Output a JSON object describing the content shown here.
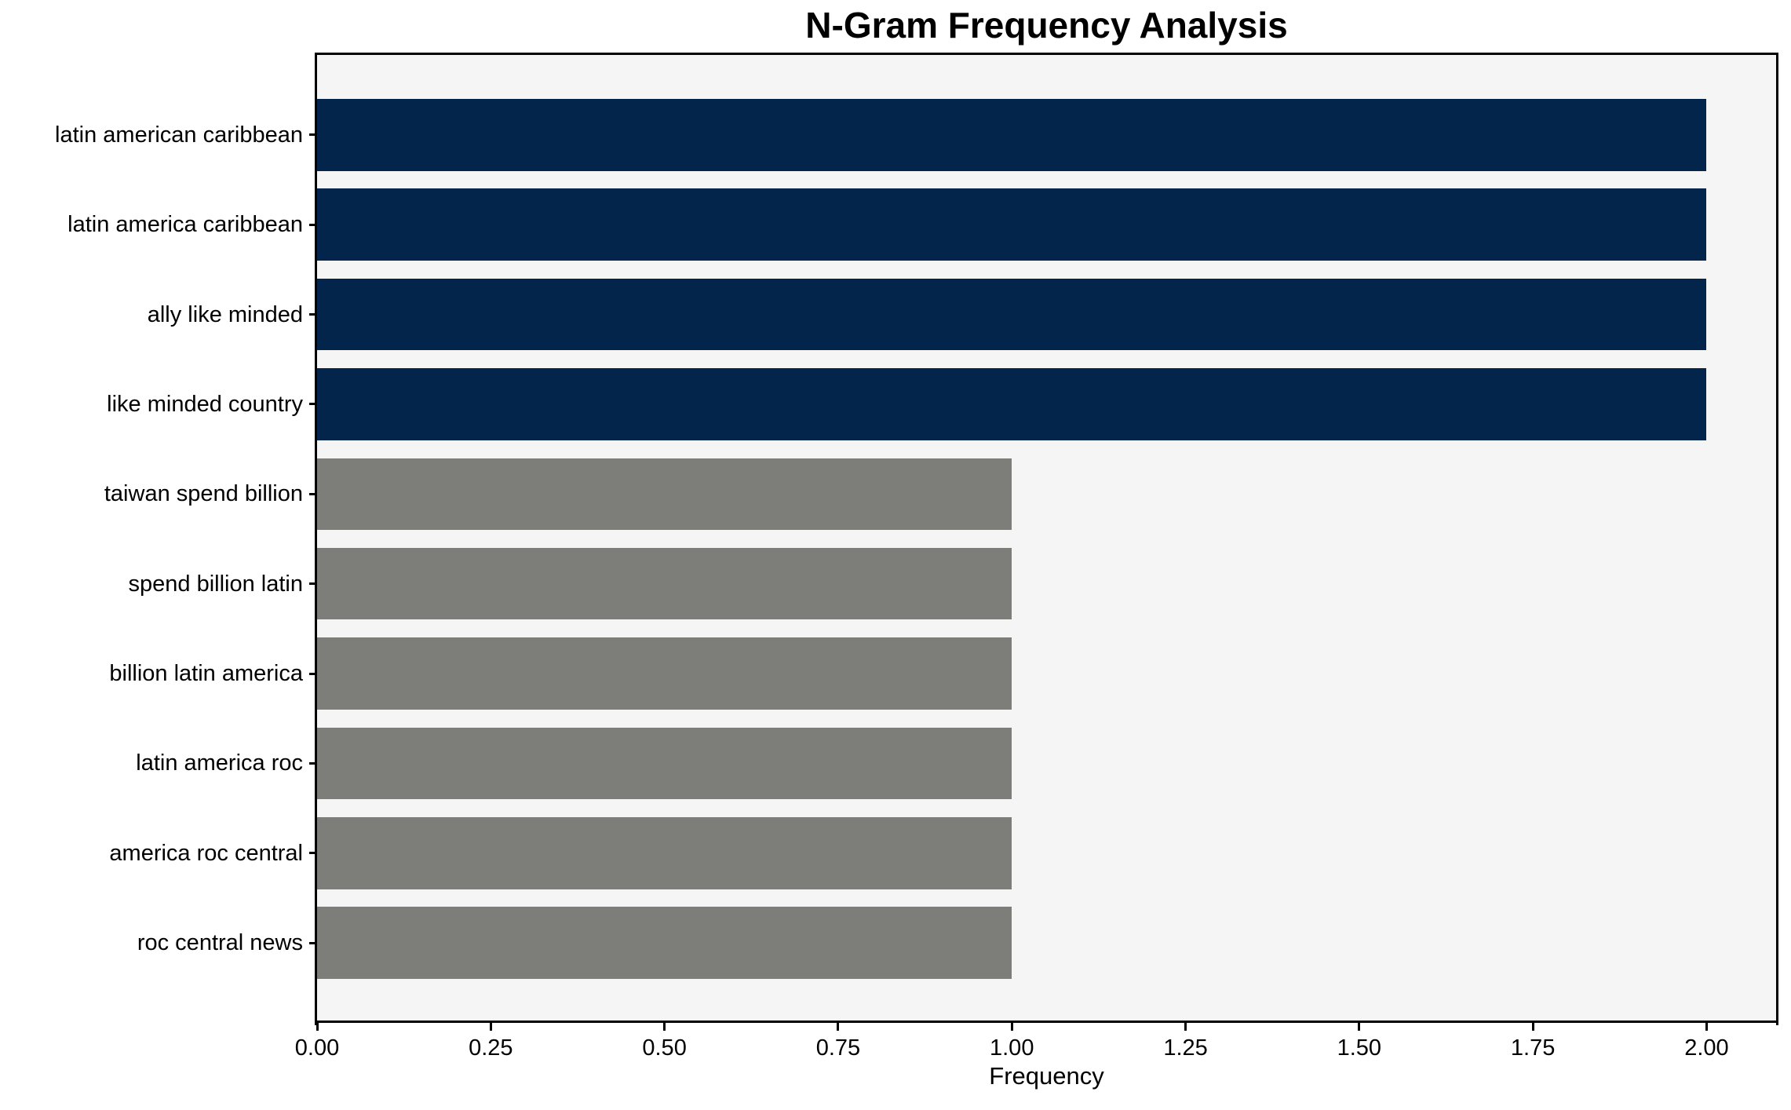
{
  "chart_data": {
    "type": "bar",
    "orientation": "horizontal",
    "title": "N-Gram Frequency Analysis",
    "xlabel": "Frequency",
    "ylabel": "",
    "categories": [
      "latin american caribbean",
      "latin america caribbean",
      "ally like minded",
      "like minded country",
      "taiwan spend billion",
      "spend billion latin",
      "billion latin america",
      "latin america roc",
      "america roc central",
      "roc central news"
    ],
    "values": [
      2,
      2,
      2,
      2,
      1,
      1,
      1,
      1,
      1,
      1
    ],
    "bar_colors": [
      "#03254c",
      "#03254c",
      "#03254c",
      "#03254c",
      "#7d7d7a",
      "#7d7d7a",
      "#7d7d7a",
      "#7d7d7a",
      "#7d7d7a",
      "#7d7d7a"
    ],
    "xlim": [
      0,
      2.1
    ],
    "xticks": [
      0,
      0.25,
      0.5,
      0.75,
      1.0,
      1.25,
      1.5,
      1.75,
      2.0
    ],
    "xtick_labels": [
      "0.00",
      "0.25",
      "0.50",
      "0.75",
      "1.00",
      "1.25",
      "1.50",
      "1.75",
      "2.00"
    ],
    "grid": false,
    "legend_position": "none",
    "colors": {
      "highlight": "#03254c",
      "muted": "#7d7d7a",
      "plot_background": "#f5f5f5",
      "figure_background": "#ffffff",
      "axis": "#000000"
    }
  }
}
